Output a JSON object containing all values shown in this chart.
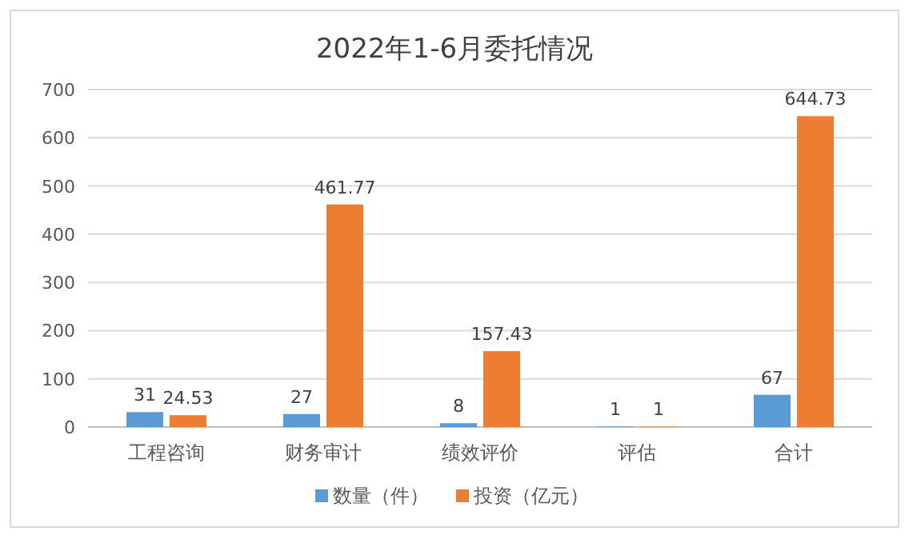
{
  "chart_data": {
    "type": "bar",
    "title": "2022年1-6月委托情况",
    "categories": [
      "工程咨询",
      "财务审计",
      "绩效评价",
      "评估",
      "合计"
    ],
    "series": [
      {
        "name": "数量（件）",
        "color": "#5b9bd5",
        "values": [
          31,
          27,
          8,
          1,
          67
        ]
      },
      {
        "name": "投资（亿元）",
        "color": "#ed7d31",
        "values": [
          24.53,
          461.77,
          157.43,
          1,
          644.73
        ]
      }
    ],
    "ylim": [
      0,
      700
    ],
    "yticks": [
      0,
      100,
      200,
      300,
      400,
      500,
      600,
      700
    ],
    "grid": "y",
    "legend": "bottom",
    "data_labels": true
  }
}
